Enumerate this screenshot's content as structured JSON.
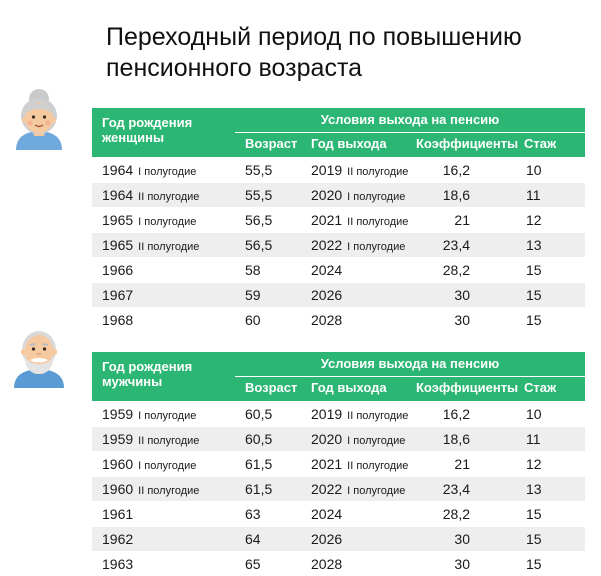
{
  "title_line1": "Переходный период по повышению",
  "title_line2": "пенсионного возраста",
  "colors": {
    "header_bg": "#2bb673",
    "stripe": "#eeeeee"
  },
  "women": {
    "birth_header_line1": "Год рождения",
    "birth_header_line2": "женщины",
    "conditions_header": "Условия выхода на пенсию",
    "col_age": "Возраст",
    "col_year": "Год выхода",
    "col_coef": "Коэффициенты",
    "col_exp": "Стаж",
    "rows": [
      {
        "birth": "1964",
        "half": "I полугодие",
        "age": "55,5",
        "year": "2019",
        "year_half": "II полугодие",
        "coef": "16,2",
        "exp": "10"
      },
      {
        "birth": "1964",
        "half": "II полугодие",
        "age": "55,5",
        "year": "2020",
        "year_half": "I полугодие",
        "coef": "18,6",
        "exp": "11"
      },
      {
        "birth": "1965",
        "half": "I полугодие",
        "age": "56,5",
        "year": "2021",
        "year_half": "II полугодие",
        "coef": "21",
        "exp": "12"
      },
      {
        "birth": "1965",
        "half": "II полугодие",
        "age": "56,5",
        "year": "2022",
        "year_half": "I полугодие",
        "coef": "23,4",
        "exp": "13"
      },
      {
        "birth": "1966",
        "half": "",
        "age": "58",
        "year": "2024",
        "year_half": "",
        "coef": "28,2",
        "exp": "15"
      },
      {
        "birth": "1967",
        "half": "",
        "age": "59",
        "year": "2026",
        "year_half": "",
        "coef": "30",
        "exp": "15"
      },
      {
        "birth": "1968",
        "half": "",
        "age": "60",
        "year": "2028",
        "year_half": "",
        "coef": "30",
        "exp": "15"
      }
    ]
  },
  "men": {
    "birth_header_line1": "Год рождения",
    "birth_header_line2": "мужчины",
    "conditions_header": "Условия выхода на пенсию",
    "col_age": "Возраст",
    "col_year": "Год выхода",
    "col_coef": "Коэффициенты",
    "col_exp": "Стаж",
    "rows": [
      {
        "birth": "1959",
        "half": "I полугодие",
        "age": "60,5",
        "year": "2019",
        "year_half": "II полугодие",
        "coef": "16,2",
        "exp": "10"
      },
      {
        "birth": "1959",
        "half": "II полугодие",
        "age": "60,5",
        "year": "2020",
        "year_half": "I полугодие",
        "coef": "18,6",
        "exp": "11"
      },
      {
        "birth": "1960",
        "half": "I полугодие",
        "age": "61,5",
        "year": "2021",
        "year_half": "II полугодие",
        "coef": "21",
        "exp": "12"
      },
      {
        "birth": "1960",
        "half": "II полугодие",
        "age": "61,5",
        "year": "2022",
        "year_half": "I полугодие",
        "coef": "23,4",
        "exp": "13"
      },
      {
        "birth": "1961",
        "half": "",
        "age": "63",
        "year": "2024",
        "year_half": "",
        "coef": "28,2",
        "exp": "15"
      },
      {
        "birth": "1962",
        "half": "",
        "age": "64",
        "year": "2026",
        "year_half": "",
        "coef": "30",
        "exp": "15"
      },
      {
        "birth": "1963",
        "half": "",
        "age": "65",
        "year": "2028",
        "year_half": "",
        "coef": "30",
        "exp": "15"
      }
    ]
  }
}
